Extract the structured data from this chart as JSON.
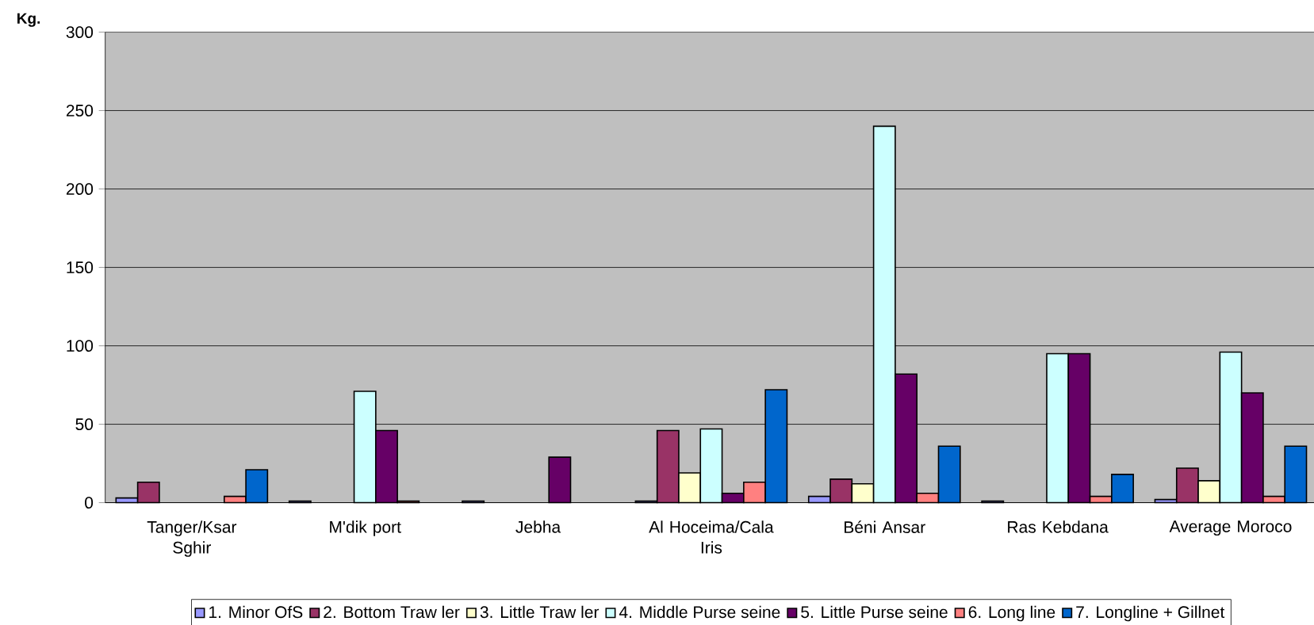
{
  "chart_data": {
    "type": "bar",
    "ylabel": "Kg.",
    "categories": [
      "Tanger/Ksar Sghir",
      "M'dik port",
      "Jebha",
      "Al Hoceima/Cala Iris",
      "Béni Ansar",
      "Ras Kebdana",
      "Average Moroco"
    ],
    "series": [
      {
        "name": "1. Minor  OfS",
        "color": "#9999ff",
        "values": [
          3,
          1,
          1,
          1,
          4,
          1,
          2
        ]
      },
      {
        "name": "2. Bottom Traw ler",
        "color": "#993366",
        "values": [
          13,
          null,
          null,
          46,
          15,
          null,
          22
        ]
      },
      {
        "name": "3. Little Traw ler",
        "color": "#ffffcc",
        "values": [
          null,
          null,
          null,
          19,
          12,
          null,
          14
        ]
      },
      {
        "name": "4. Middle Purse seine",
        "color": "#ccffff",
        "values": [
          null,
          71,
          null,
          47,
          240,
          95,
          96
        ]
      },
      {
        "name": "5. Little Purse seine",
        "color": "#660066",
        "values": [
          null,
          46,
          29,
          6,
          82,
          95,
          70
        ]
      },
      {
        "name": "6. Long line",
        "color": "#ff8080",
        "values": [
          4,
          1,
          null,
          13,
          6,
          4,
          4
        ]
      },
      {
        "name": "7. Longline + Gillnet",
        "color": "#0066cc",
        "values": [
          21,
          null,
          null,
          72,
          36,
          18,
          36
        ]
      }
    ],
    "ylim": [
      0,
      300
    ],
    "yticks": [
      0,
      50,
      100,
      150,
      200,
      250,
      300
    ],
    "grid": "y",
    "legend": "bottom"
  }
}
